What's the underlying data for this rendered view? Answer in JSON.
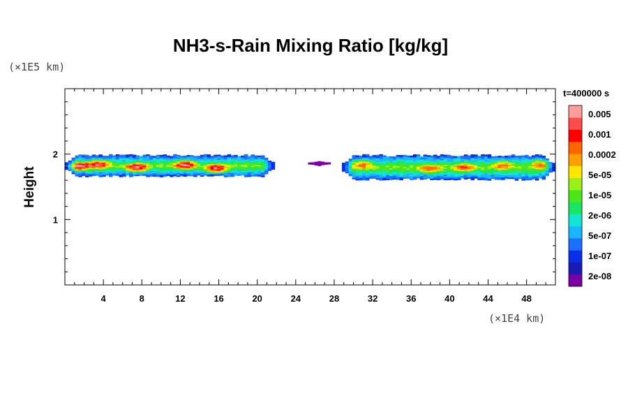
{
  "chart_data": {
    "type": "heatmap",
    "title": "NH3-s-Rain Mixing Ratio [kg/kg]",
    "ylabel": "Height",
    "xlabel": "",
    "x_unit": "(×1E4 km)",
    "y_unit": "(×1E5 km)",
    "time_label": "t=400000 s",
    "xlim": [
      0,
      51
    ],
    "ylim": [
      0,
      3
    ],
    "x_ticks": [
      4,
      8,
      12,
      16,
      20,
      24,
      28,
      32,
      36,
      40,
      44,
      48
    ],
    "y_ticks": [
      1,
      2
    ],
    "colorbar": {
      "colors": [
        "#7b00a8",
        "#1a1ab4",
        "#0a2fe8",
        "#1c70ff",
        "#1ab4ff",
        "#12e6d2",
        "#1ae664",
        "#4ce61a",
        "#9cf01a",
        "#ffe600",
        "#ffa000",
        "#ff6400",
        "#ff0000",
        "#ff4b4b",
        "#ff9c9c"
      ],
      "labels": [
        "2e-08",
        "1e-07",
        "5e-07",
        "2e-06",
        "1e-05",
        "5e-05",
        "0.0002",
        "0.001",
        "0.005"
      ]
    },
    "regions": [
      {
        "x_start": 0,
        "x_end": 21.8,
        "y_bottom": 1.65,
        "y_top": 2.0,
        "peak": 14,
        "cores": [
          [
            1.5,
            1.82
          ],
          [
            3.5,
            1.85
          ],
          [
            7.5,
            1.8
          ],
          [
            12.5,
            1.84
          ],
          [
            15.8,
            1.78
          ]
        ]
      },
      {
        "x_start": 25.3,
        "x_end": 27.6,
        "y_bottom": 1.82,
        "y_top": 1.9,
        "peak": 0,
        "cores": []
      },
      {
        "x_start": 28.8,
        "x_end": 51,
        "y_bottom": 1.6,
        "y_top": 2.0,
        "peak": 11,
        "cores": [
          [
            31,
            1.85
          ],
          [
            38,
            1.78
          ],
          [
            41.5,
            1.8
          ],
          [
            45.5,
            1.84
          ],
          [
            49.5,
            1.85
          ]
        ]
      }
    ]
  }
}
